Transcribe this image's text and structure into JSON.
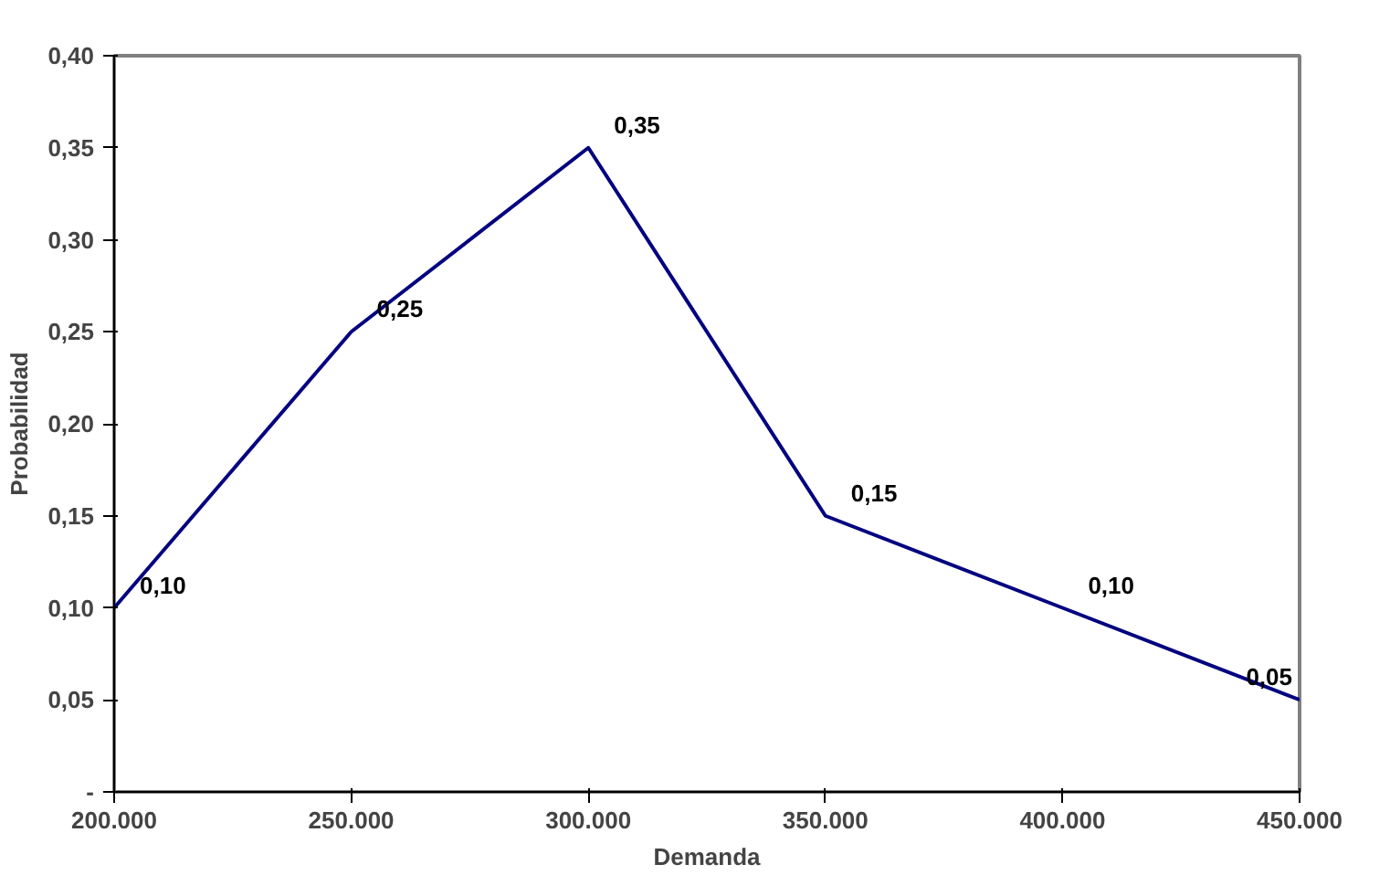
{
  "chart_data": {
    "type": "line",
    "xlabel": "Demanda",
    "ylabel": "Probabilidad",
    "x": [
      200000,
      250000,
      300000,
      350000,
      400000,
      450000
    ],
    "series": [
      {
        "color": "#000080",
        "values": [
          0.1,
          0.25,
          0.35,
          0.15,
          0.1,
          0.05
        ],
        "value_labels": [
          "0,10",
          "0,25",
          "0,35",
          "0,15",
          "0,10",
          "0,05"
        ]
      }
    ],
    "xlim": [
      200000,
      450000
    ],
    "ylim": [
      0,
      0.4
    ],
    "xticks": [
      {
        "value": 200000,
        "label": "200.000"
      },
      {
        "value": 250000,
        "label": "250.000"
      },
      {
        "value": 300000,
        "label": "300.000"
      },
      {
        "value": 350000,
        "label": "350.000"
      },
      {
        "value": 400000,
        "label": "400.000"
      },
      {
        "value": 450000,
        "label": "450.000"
      }
    ],
    "yticks": [
      {
        "value": 0,
        "label": "-"
      },
      {
        "value": 0.05,
        "label": "0,05"
      },
      {
        "value": 0.1,
        "label": "0,10"
      },
      {
        "value": 0.15,
        "label": "0,15"
      },
      {
        "value": 0.2,
        "label": "0,20"
      },
      {
        "value": 0.25,
        "label": "0,25"
      },
      {
        "value": 0.3,
        "label": "0,30"
      },
      {
        "value": 0.35,
        "label": "0,35"
      },
      {
        "value": 0.4,
        "label": "0,40"
      }
    ],
    "grid": false,
    "marker": "none",
    "line_style": "solid"
  }
}
